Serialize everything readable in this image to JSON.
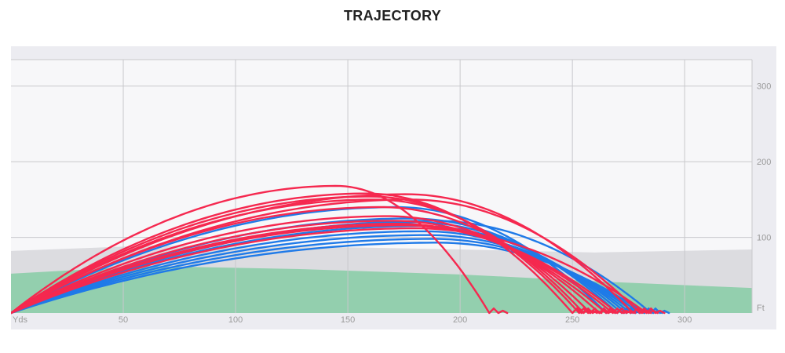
{
  "title": "TRAJECTORY",
  "chart_data": {
    "type": "line",
    "title": "TRAJECTORY",
    "x_unit_label": "Yds",
    "y_unit_label": "Ft",
    "xlim": [
      0,
      330
    ],
    "ylim": [
      0,
      335
    ],
    "x_ticks": [
      50,
      100,
      150,
      200,
      250,
      300
    ],
    "y_ticks": [
      100,
      200,
      300
    ],
    "grid": true,
    "colors": {
      "red": "#f5284f",
      "blue": "#1f7ae8",
      "green": "#93cfae",
      "mist": "#dcdce0",
      "plot_bg": "#f7f7f9"
    },
    "terrain": {
      "green_top_x": [
        0,
        60,
        130,
        200,
        260,
        330
      ],
      "green_top_y": [
        52,
        62,
        58,
        51,
        42,
        33
      ],
      "mist_top_x": [
        0,
        60,
        130,
        200,
        260,
        330
      ],
      "mist_top_y": [
        82,
        89,
        88,
        84,
        80,
        84
      ]
    },
    "series": [
      {
        "group": "red",
        "carry": 213,
        "apex_x": 145,
        "apex": 168
      },
      {
        "group": "red",
        "carry": 250,
        "apex_x": 158,
        "apex": 158
      },
      {
        "group": "red",
        "carry": 253,
        "apex_x": 160,
        "apex": 154
      },
      {
        "group": "red",
        "carry": 255,
        "apex_x": 162,
        "apex": 150
      },
      {
        "group": "red",
        "carry": 258,
        "apex_x": 165,
        "apex": 140
      },
      {
        "group": "red",
        "carry": 262,
        "apex_x": 168,
        "apex": 128
      },
      {
        "group": "red",
        "carry": 265,
        "apex_x": 170,
        "apex": 122
      },
      {
        "group": "red",
        "carry": 268,
        "apex_x": 172,
        "apex": 118
      },
      {
        "group": "red",
        "carry": 270,
        "apex_x": 174,
        "apex": 116
      },
      {
        "group": "red",
        "carry": 277,
        "apex_x": 176,
        "apex": 157
      },
      {
        "group": "red",
        "carry": 280,
        "apex_x": 178,
        "apex": 150
      },
      {
        "group": "red",
        "carry": 283,
        "apex_x": 180,
        "apex": 112
      },
      {
        "group": "blue",
        "carry": 265,
        "apex_x": 172,
        "apex": 140
      },
      {
        "group": "blue",
        "carry": 270,
        "apex_x": 178,
        "apex": 125
      },
      {
        "group": "blue",
        "carry": 272,
        "apex_x": 180,
        "apex": 120
      },
      {
        "group": "blue",
        "carry": 274,
        "apex_x": 182,
        "apex": 115
      },
      {
        "group": "blue",
        "carry": 276,
        "apex_x": 184,
        "apex": 108
      },
      {
        "group": "blue",
        "carry": 278,
        "apex_x": 186,
        "apex": 103
      },
      {
        "group": "blue",
        "carry": 280,
        "apex_x": 188,
        "apex": 98
      },
      {
        "group": "blue",
        "carry": 282,
        "apex_x": 190,
        "apex": 93
      },
      {
        "group": "blue",
        "carry": 285,
        "apex_x": 188,
        "apex": 122
      }
    ]
  }
}
